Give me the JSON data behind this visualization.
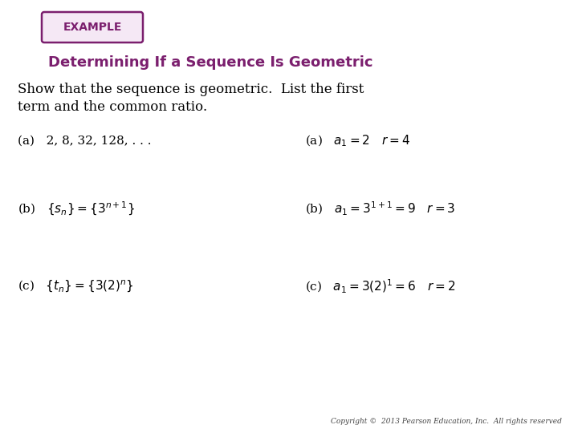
{
  "background_color": "#ffffff",
  "example_box_text": "EXAMPLE",
  "example_box_color": "#7b1f6e",
  "example_box_bg": "#f5e8f5",
  "title": "Determining If a Sequence Is Geometric",
  "title_color": "#7b1f6e",
  "title_fontsize": 13,
  "intro_line1": "Show that the sequence is geometric.  List the first",
  "intro_line2": "term and the common ratio.",
  "copyright_text": "Copyright ©  2013 Pearson Education, Inc.  All rights reserved",
  "text_color": "#000000",
  "label_fontsize": 11,
  "intro_fontsize": 12
}
